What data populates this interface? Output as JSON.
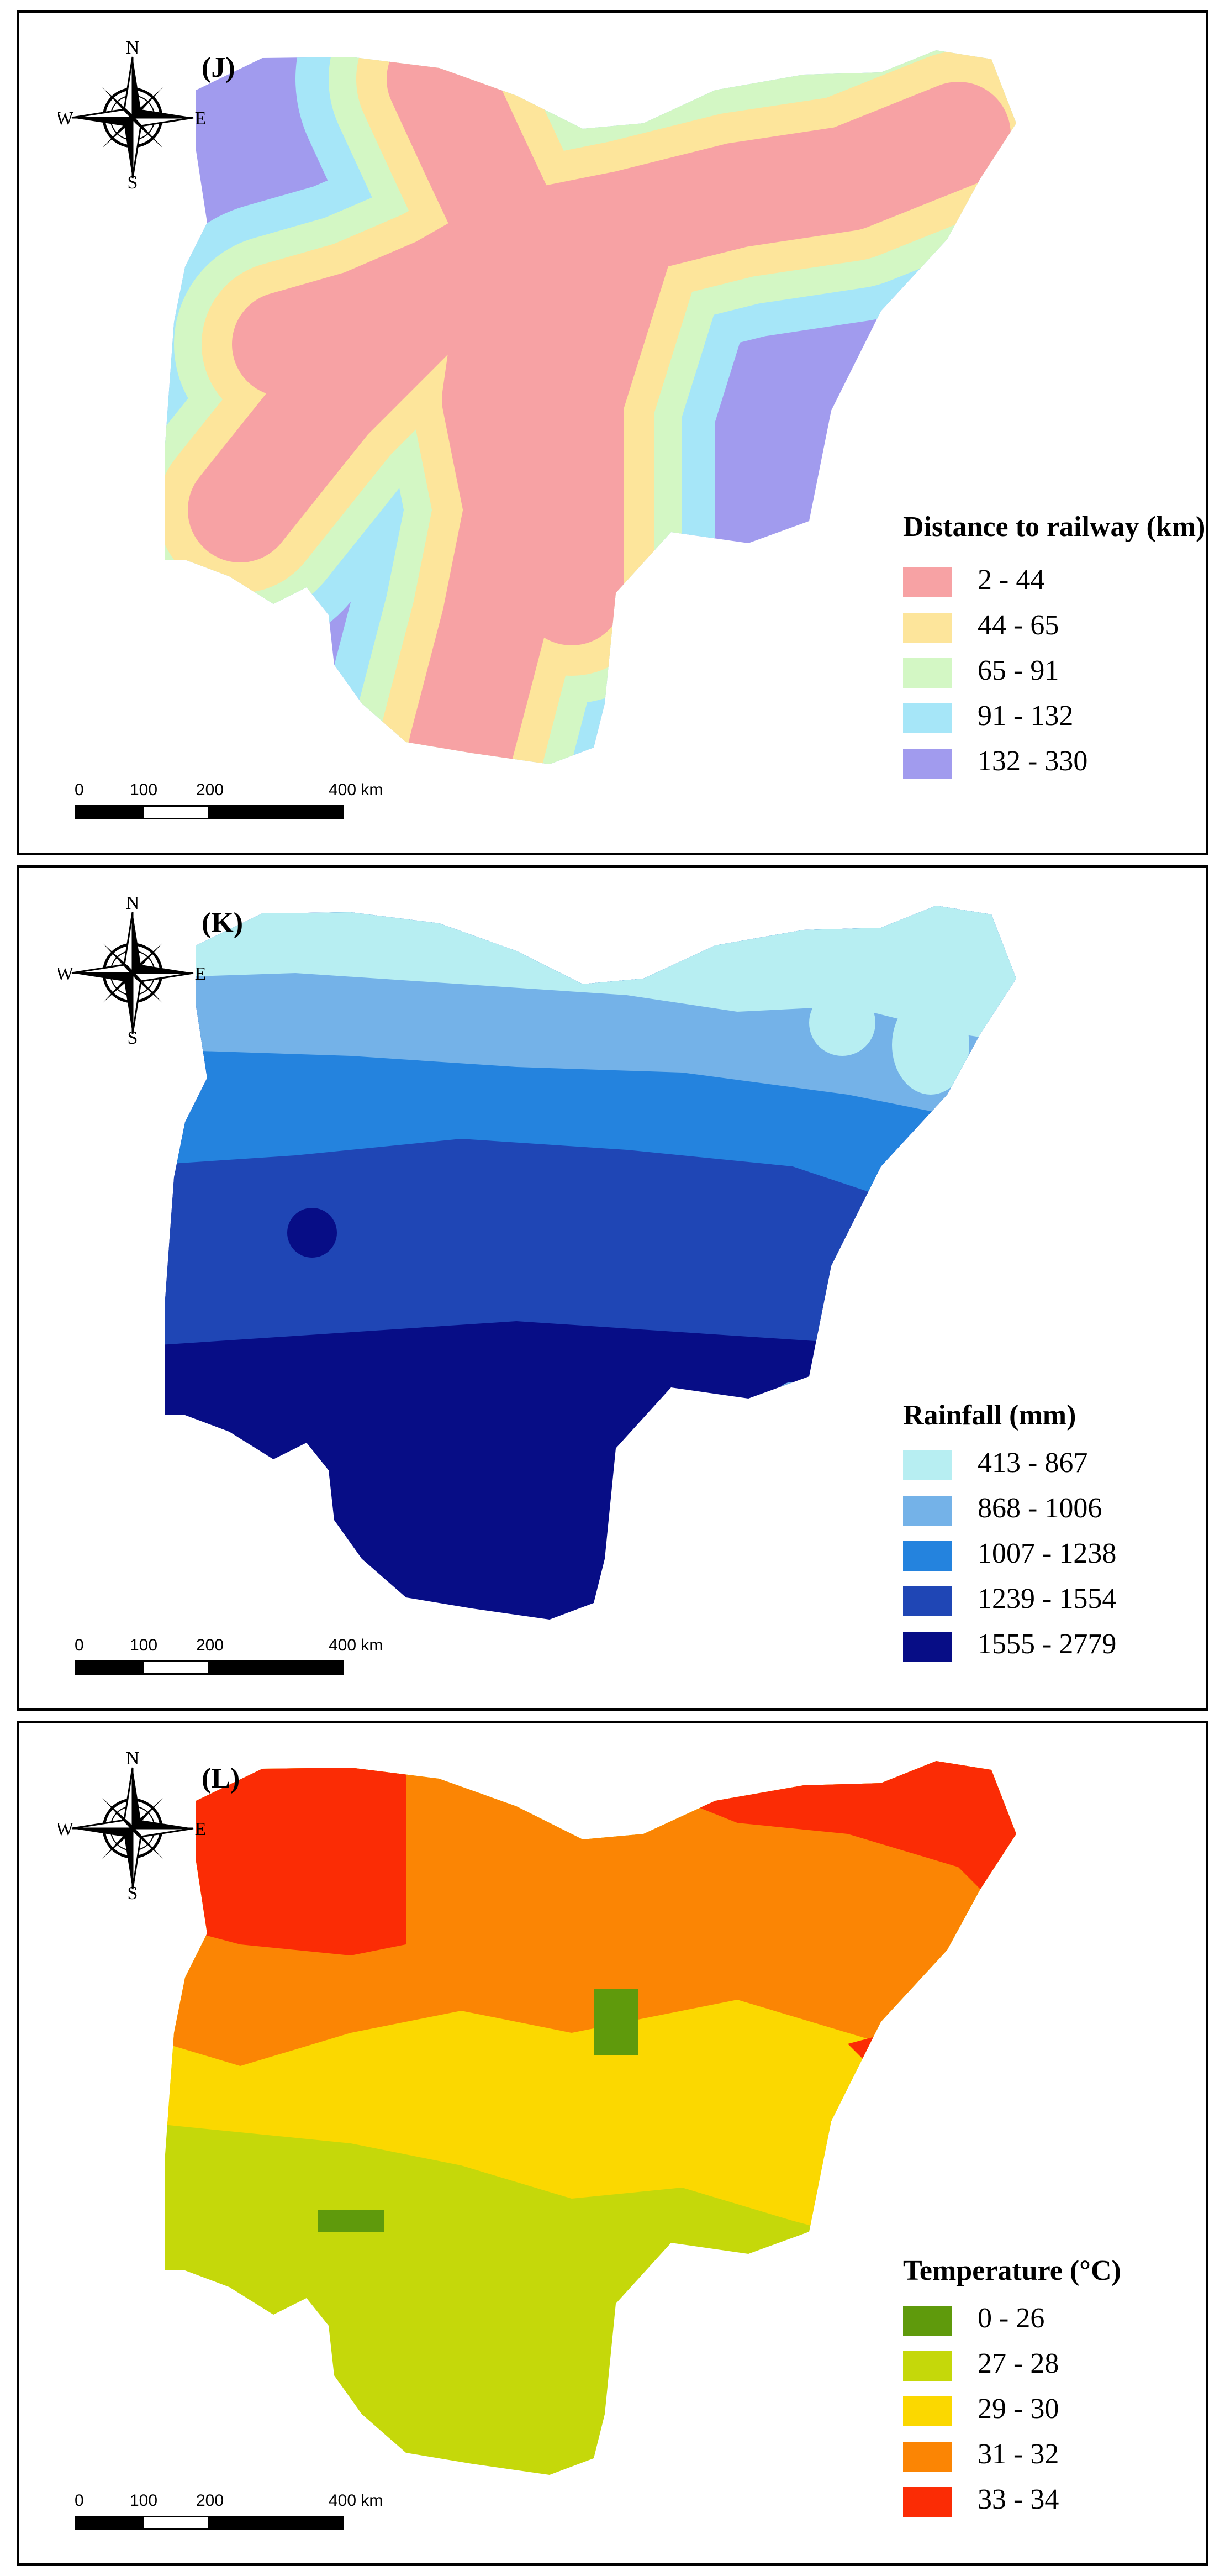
{
  "compass": {
    "north": "N",
    "south": "S",
    "east": "E",
    "west": "W"
  },
  "scale_bar": {
    "ticks": [
      "0",
      "100",
      "200",
      "400 km"
    ]
  },
  "panels": [
    {
      "id": "J",
      "letter": "(J)",
      "legend_title": "Distance to railway (km)",
      "classes": [
        {
          "label": "2 - 44",
          "color": "#f7a2a4"
        },
        {
          "label": "44 - 65",
          "color": "#fde59b"
        },
        {
          "label": "65 - 91",
          "color": "#d3f7c4"
        },
        {
          "label": "91 - 132",
          "color": "#a6e6f8"
        },
        {
          "label": "132 - 330",
          "color": "#a19bee"
        }
      ]
    },
    {
      "id": "K",
      "letter": "(K)",
      "legend_title": "Rainfall (mm)",
      "classes": [
        {
          "label": "413 - 867",
          "color": "#b7eef2"
        },
        {
          "label": "868 - 1006",
          "color": "#74b2e8"
        },
        {
          "label": "1007 - 1238",
          "color": "#2483de"
        },
        {
          "label": "1239 - 1554",
          "color": "#1f46b5"
        },
        {
          "label": "1555 - 2779",
          "color": "#070d86"
        }
      ]
    },
    {
      "id": "L",
      "letter": "(L)",
      "legend_title": "Temperature (°C)",
      "classes": [
        {
          "label": "0 - 26",
          "color": "#5f9a0c"
        },
        {
          "label": "27 - 28",
          "color": "#c5d80a"
        },
        {
          "label": "29 - 30",
          "color": "#fbd800"
        },
        {
          "label": "31 - 32",
          "color": "#fb8504"
        },
        {
          "label": "33 - 34",
          "color": "#fb2c05"
        }
      ]
    }
  ]
}
